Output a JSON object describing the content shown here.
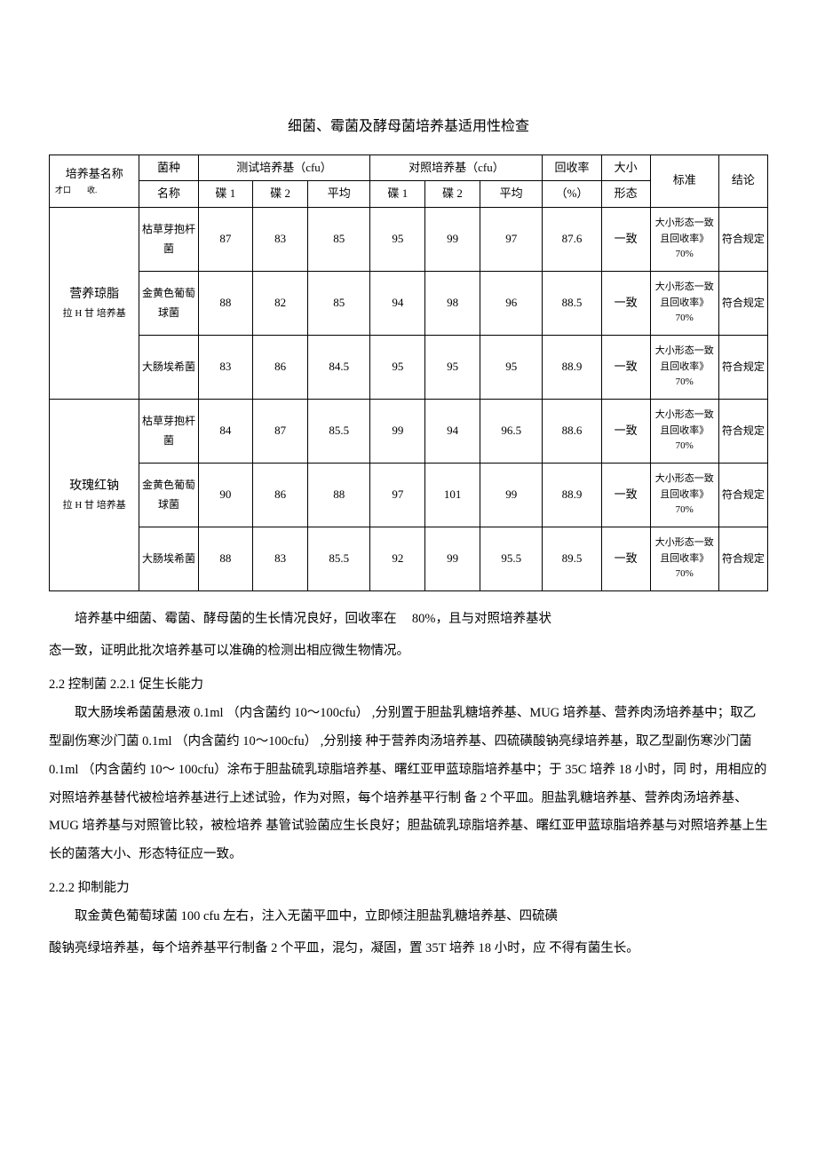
{
  "title": "细菌、霉菌及酵母菌培养基适用性检查",
  "headers": {
    "medium_name": "培养基名称",
    "medium_name_sub": "才口　　收.",
    "bacteria": "菌种",
    "bacteria_sub": "名称",
    "test_medium": "测试培养基（cfu）",
    "control_medium": "对照培养基（cfu）",
    "plate1": "碟 1",
    "plate2": "碟 2",
    "avg": "平均",
    "recovery": "回收率",
    "recovery_unit": "（%）",
    "morph": "大小",
    "morph_sub": "形态",
    "standard": "标准",
    "conclusion": "结论"
  },
  "media": [
    {
      "name_main": "营养琼脂",
      "name_sub": "拉 H 甘 培养基",
      "rows": [
        {
          "bacteria": "枯草芽抱杆菌",
          "t1": "87",
          "t2": "83",
          "tavg": "85",
          "c1": "95",
          "c2": "99",
          "cavg": "97",
          "rec": "87.6",
          "morph": "一致",
          "std": "大小形态一致且回收率》70%",
          "concl": "符合规定"
        },
        {
          "bacteria": "金黄色葡萄球菌",
          "t1": "88",
          "t2": "82",
          "tavg": "85",
          "c1": "94",
          "c2": "98",
          "cavg": "96",
          "rec": "88.5",
          "morph": "一致",
          "std": "大小形态一致且回收率》70%",
          "concl": "符合规定"
        },
        {
          "bacteria": "大肠埃希菌",
          "t1": "83",
          "t2": "86",
          "tavg": "84.5",
          "c1": "95",
          "c2": "95",
          "cavg": "95",
          "rec": "88.9",
          "morph": "一致",
          "std": "大小形态一致且回收率》70%",
          "concl": "符合规定"
        }
      ]
    },
    {
      "name_main": "玫瑰红钠",
      "name_sub": "拉 H 甘 培养基",
      "rows": [
        {
          "bacteria": "枯草芽抱杆菌",
          "t1": "84",
          "t2": "87",
          "tavg": "85.5",
          "c1": "99",
          "c2": "94",
          "cavg": "96.5",
          "rec": "88.6",
          "morph": "一致",
          "std": "大小形态一致且回收率》70%",
          "concl": "符合规定"
        },
        {
          "bacteria": "金黄色葡萄球菌",
          "t1": "90",
          "t2": "86",
          "tavg": "88",
          "c1": "97",
          "c2": "101",
          "cavg": "99",
          "rec": "88.9",
          "morph": "一致",
          "std": "大小形态一致且回收率》70%",
          "concl": "符合规定"
        },
        {
          "bacteria": "大肠埃希菌",
          "t1": "88",
          "t2": "83",
          "tavg": "85.5",
          "c1": "92",
          "c2": "99",
          "cavg": "95.5",
          "rec": "89.5",
          "morph": "一致",
          "std": "大小形态一致且回收率》70%",
          "concl": "符合规定"
        }
      ]
    }
  ],
  "body": {
    "p1a": "培养基中细菌、霉菌、酵母菌的生长情况良好，回收率在",
    "p1_num": "80%，",
    "p1b": "且与对照培养基状",
    "p1c": "态一致，证明此批次培养基可以准确的检测出相应微生物情况。",
    "s22": "2.2 控制菌  2.2.1 促生长能力",
    "p2": "取大肠埃希菌菌悬液 0.1ml （内含菌约 10〜100cfu） ,分别置于胆盐乳糖培养基、MUG 培养基、营养肉汤培养基中；取乙型副伤寒沙门菌 0.1ml （内含菌约 10〜100cfu） ,分别接 种于营养肉汤培养基、四硫磺酸钠亮绿培养基，取乙型副伤寒沙门菌 0.1ml （内含菌约 10〜 100cfu）涂布于胆盐硫乳琼脂培养基、曙红亚甲蓝琼脂培养基中；于 35C 培养 18 小时，同 时，用相应的对照培养基替代被检培养基进行上述试验，作为对照，每个培养基平行制 备 2 个平皿。胆盐乳糖培养基、营养肉汤培养基、MUG 培养基与对照管比较，被检培养 基管试验菌应生长良好；胆盐硫乳琼脂培养基、曙红亚甲蓝琼脂培养基与对照培养基上生 长的菌落大小、形态特征应一致。",
    "s222": "2.2.2 抑制能力",
    "p3a": "取金黄色葡萄球菌 100 cfu 左右，注入无菌平皿中，立即倾注胆盐乳糖培养基、四硫磺",
    "p3b": "酸钠亮绿培养基，每个培养基平行制备 2 个平皿，混匀，凝固，置 35T 培养 18 小时，应 不得有菌生长。"
  }
}
